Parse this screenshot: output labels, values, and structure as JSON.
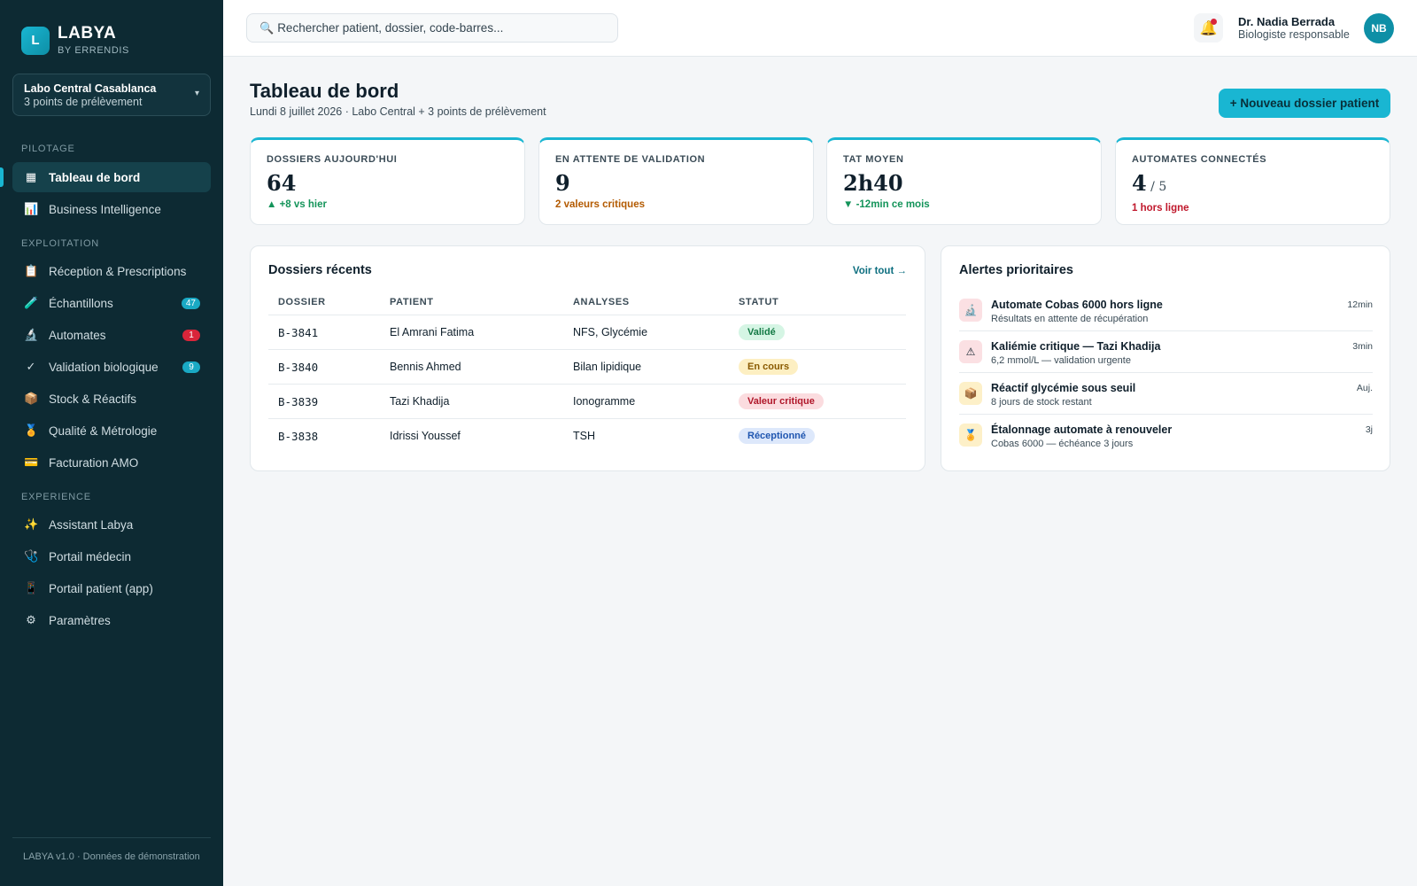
{
  "brand": {
    "logo_letter": "L",
    "name": "LABYA",
    "sub": "BY ERRENDIS"
  },
  "lab": {
    "name": "Labo Central Casablanca",
    "sub": "3 points de prélèvement",
    "chevron": "▾"
  },
  "nav": {
    "sections": [
      "PILOTAGE",
      "EXPLOITATION",
      "EXPERIENCE"
    ],
    "items": [
      {
        "label": "Tableau de bord",
        "icon": "▦",
        "icon_name": "dashboard-icon"
      },
      {
        "label": "Business Intelligence",
        "icon": "📊",
        "icon_name": "bar-chart-icon"
      },
      {
        "label": "Réception & Prescriptions",
        "icon": "📋",
        "icon_name": "clipboard-icon"
      },
      {
        "label": "Échantillons",
        "icon": "🧪",
        "icon_name": "test-tube-icon",
        "badge": "47",
        "badge_color": "#1aa9c4"
      },
      {
        "label": "Automates",
        "icon": "🔬",
        "icon_name": "microscope-icon",
        "badge": "1",
        "badge_color": "#d9253a"
      },
      {
        "label": "Validation biologique",
        "icon": "✓",
        "icon_name": "check-icon",
        "badge": "9",
        "badge_color": "#1aa9c4"
      },
      {
        "label": "Stock & Réactifs",
        "icon": "📦",
        "icon_name": "package-icon"
      },
      {
        "label": "Qualité & Métrologie",
        "icon": "🏅",
        "icon_name": "medal-icon"
      },
      {
        "label": "Facturation AMO",
        "icon": "💳",
        "icon_name": "credit-card-icon"
      },
      {
        "label": "Assistant Labya",
        "icon": "✨",
        "icon_name": "sparkles-icon"
      },
      {
        "label": "Portail médecin",
        "icon": "🩺",
        "icon_name": "stethoscope-icon"
      },
      {
        "label": "Portail patient (app)",
        "icon": "📱",
        "icon_name": "mobile-phone-icon"
      },
      {
        "label": "Paramètres",
        "icon": "⚙",
        "icon_name": "gear-icon"
      }
    ]
  },
  "footer": "LABYA v1.0 · Données de démonstration",
  "search": {
    "icon": "🔍",
    "placeholder": "Rechercher patient, dossier, code-barres..."
  },
  "user": {
    "bell_icon": "🔔",
    "name": "Dr. Nadia Berrada",
    "role": "Biologiste responsable",
    "initials": "NB"
  },
  "page": {
    "title": "Tableau de bord",
    "subtitle": "Lundi 8 juillet 2026 · Labo Central + 3 points de prélèvement",
    "new_button": "+ Nouveau dossier patient"
  },
  "kpis": [
    {
      "label": "DOSSIERS AUJOURD'HUI",
      "value": "64",
      "note": "▲ +8 vs hier",
      "note_color": "#14945a"
    },
    {
      "label": "EN ATTENTE DE VALIDATION",
      "value": "9",
      "note": "2 valeurs critiques",
      "note_color": "#b35a00"
    },
    {
      "label": "TAT MOYEN",
      "value": "2h40",
      "note": "▼ -12min ce mois",
      "note_color": "#14945a"
    },
    {
      "label": "AUTOMATES CONNECTÉS",
      "value": "4",
      "total": " / 5",
      "note": "1 hors ligne",
      "note_color": "#c0182c"
    }
  ],
  "recent": {
    "title": "Dossiers récents",
    "see_all": "Voir tout →",
    "columns": [
      "DOSSIER",
      "PATIENT",
      "ANALYSES",
      "STATUT"
    ],
    "rows": [
      {
        "id": "B-3841",
        "patient": "El Amrani Fatima",
        "analyses": "NFS, Glycémie",
        "status": "Validé",
        "status_bg": "#d5f5e4",
        "status_fg": "#137a45"
      },
      {
        "id": "B-3840",
        "patient": "Bennis Ahmed",
        "analyses": "Bilan lipidique",
        "status": "En cours",
        "status_bg": "#fdefc2",
        "status_fg": "#8a5a00"
      },
      {
        "id": "B-3839",
        "patient": "Tazi Khadija",
        "analyses": "Ionogramme",
        "status": "Valeur critique",
        "status_bg": "#fbdcdf",
        "status_fg": "#b0172a"
      },
      {
        "id": "B-3838",
        "patient": "Idrissi Youssef",
        "analyses": "TSH",
        "status": "Réceptionné",
        "status_bg": "#dde8fb",
        "status_fg": "#1f56b0"
      }
    ]
  },
  "alerts": {
    "title": "Alertes prioritaires",
    "items": [
      {
        "icon": "🔬",
        "icon_name": "microscope-icon",
        "icon_bg": "#fbe0e3",
        "title": "Automate Cobas 6000 hors ligne",
        "desc": "Résultats en attente de récupération",
        "time": "12min"
      },
      {
        "icon": "⚠",
        "icon_name": "warning-icon",
        "icon_bg": "#fbe0e3",
        "title": "Kaliémie critique — Tazi Khadija",
        "desc": "6,2 mmol/L — validation urgente",
        "time": "3min"
      },
      {
        "icon": "📦",
        "icon_name": "package-icon",
        "icon_bg": "#fdf0c8",
        "title": "Réactif glycémie sous seuil",
        "desc": "8 jours de stock restant",
        "time": "Auj."
      },
      {
        "icon": "🏅",
        "icon_name": "medal-icon",
        "icon_bg": "#fdf0c8",
        "title": "Étalonnage automate à renouveler",
        "desc": "Cobas 6000 — échéance 3 jours",
        "time": "3j"
      }
    ]
  }
}
